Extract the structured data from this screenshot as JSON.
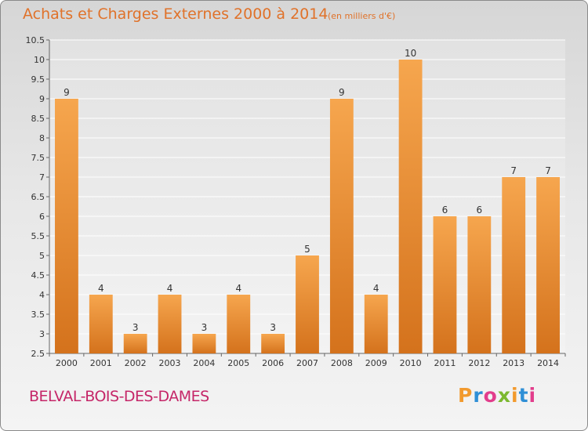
{
  "header": {
    "title": "Achats et Charges Externes 2000 à 2014",
    "subtitle": "(en milliers d'€)"
  },
  "footer": {
    "commune": "BELVAL-BOIS-DES-DAMES",
    "logo_letters": [
      "P",
      "r",
      "o",
      "x",
      "i",
      "t",
      "i"
    ],
    "logo_colors": [
      "#f29a2e",
      "#2f8fd6",
      "#e23d8c",
      "#7cb82f",
      "#f29a2e",
      "#2f8fd6",
      "#e23d8c"
    ]
  },
  "colors": {
    "bar_light": "#f6a14b",
    "bar_dark": "#d4721c",
    "title": "#e0722a",
    "commune": "#c52668"
  },
  "chart_data": {
    "type": "bar",
    "categories": [
      "2000",
      "2001",
      "2002",
      "2003",
      "2004",
      "2005",
      "2006",
      "2007",
      "2008",
      "2009",
      "2010",
      "2011",
      "2012",
      "2013",
      "2014"
    ],
    "values": [
      9,
      4,
      3,
      4,
      3,
      4,
      3,
      5,
      9,
      4,
      10,
      6,
      6,
      7,
      7
    ],
    "data_labels": [
      "9",
      "4",
      "3",
      "4",
      "3",
      "4",
      "3",
      "5",
      "9",
      "4",
      "10",
      "6",
      "6",
      "7",
      "7"
    ],
    "title": "Achats et Charges Externes 2000 à 2014",
    "xlabel": "",
    "ylabel": "",
    "ylim": [
      2.5,
      10.5
    ],
    "yticks": [
      "2.5",
      "3",
      "3.5",
      "4",
      "4.5",
      "5",
      "5.5",
      "6",
      "6.5",
      "7",
      "7.5",
      "8",
      "8.5",
      "9",
      "9.5",
      "10",
      "10.5"
    ],
    "grid": true
  }
}
